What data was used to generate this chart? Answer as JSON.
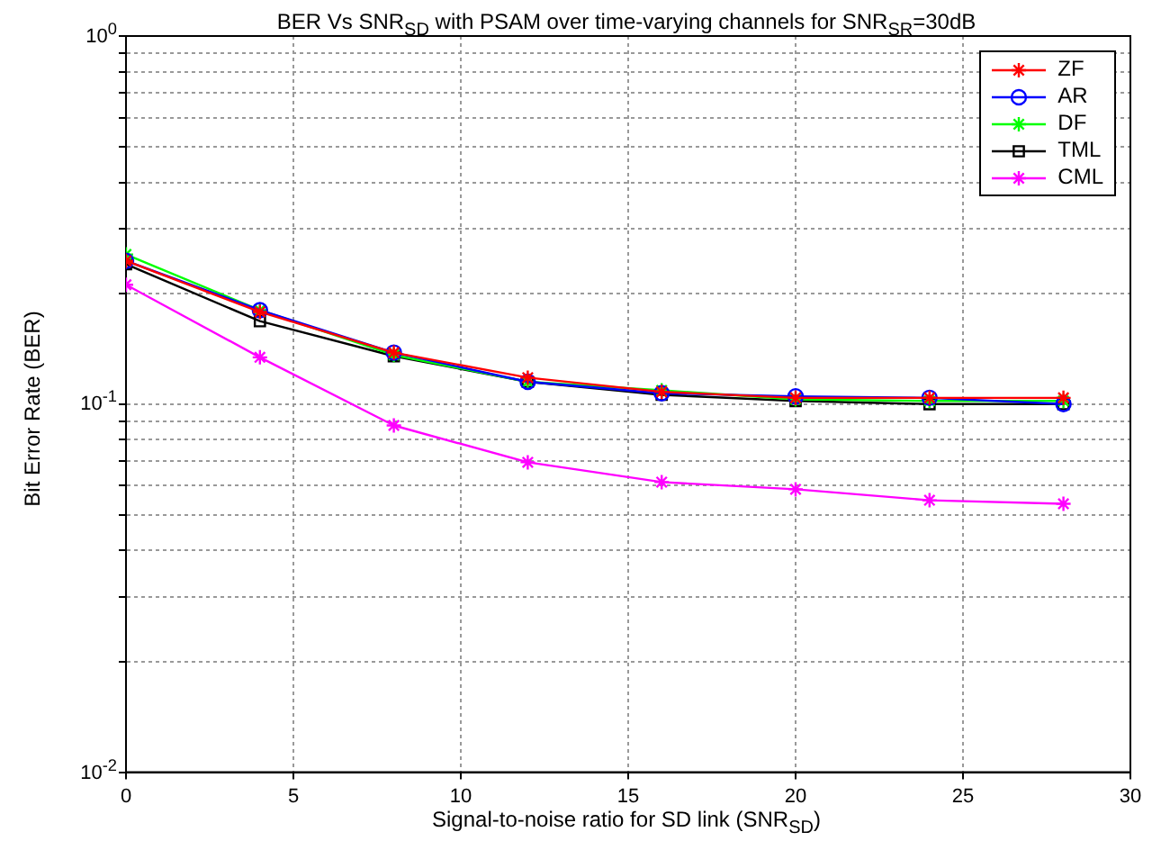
{
  "chart_data": {
    "type": "line",
    "title": "BER Vs SNR$_{SD}$ with PSAM over time-varying channels for SNR$_{SR}$=30dB",
    "xlabel": "Signal-to-noise ratio for SD link (SNR$_{SD}$)",
    "ylabel": "Bit Error Rate (BER)",
    "x": [
      0,
      4,
      8,
      12,
      16,
      20,
      24,
      28
    ],
    "series": [
      {
        "name": "ZF",
        "color": "#ff0000",
        "marker": "cross",
        "values": [
          0.245,
          0.178,
          0.138,
          0.118,
          0.108,
          0.104,
          0.104,
          0.104
        ]
      },
      {
        "name": "AR",
        "color": "#0000ff",
        "marker": "circle",
        "values": [
          0.245,
          0.18,
          0.138,
          0.115,
          0.107,
          0.105,
          0.104,
          0.1
        ]
      },
      {
        "name": "DF",
        "color": "#00ff00",
        "marker": "cross",
        "values": [
          0.255,
          0.18,
          0.136,
          0.115,
          0.109,
          0.103,
          0.102,
          0.102
        ]
      },
      {
        "name": "TML",
        "color": "#000000",
        "marker": "square",
        "values": [
          0.24,
          0.168,
          0.135,
          0.115,
          0.106,
          0.102,
          0.1,
          0.1
        ]
      },
      {
        "name": "CML",
        "color": "#ff00ff",
        "marker": "cross",
        "values": [
          0.211,
          0.134,
          0.0875,
          0.0695,
          0.0614,
          0.0587,
          0.0548,
          0.0536
        ]
      }
    ],
    "xlim": [
      0,
      30
    ],
    "xticks": [
      0,
      5,
      10,
      15,
      20,
      25,
      30
    ],
    "log": "y",
    "ylim": [
      0.01,
      1
    ],
    "yticks": [
      {
        "value": 0.01,
        "label": "10$^{-2}$"
      },
      {
        "value": 0.02,
        "label": null
      },
      {
        "value": 0.03,
        "label": null
      },
      {
        "value": 0.04,
        "label": null
      },
      {
        "value": 0.05,
        "label": null
      },
      {
        "value": 0.06,
        "label": null
      },
      {
        "value": 0.07,
        "label": null
      },
      {
        "value": 0.08,
        "label": null
      },
      {
        "value": 0.09,
        "label": null
      },
      {
        "value": 0.1,
        "label": "10$^{-1}$"
      },
      {
        "value": 0.2,
        "label": null
      },
      {
        "value": 0.3,
        "label": null
      },
      {
        "value": 0.4,
        "label": null
      },
      {
        "value": 0.5,
        "label": null
      },
      {
        "value": 0.6,
        "label": null
      },
      {
        "value": 0.7,
        "label": null
      },
      {
        "value": 0.8,
        "label": null
      },
      {
        "value": 0.9,
        "label": null
      },
      {
        "value": 1,
        "label": "10$^{0}$"
      }
    ],
    "grid": true,
    "legend": "top right",
    "line_style": "solid"
  }
}
